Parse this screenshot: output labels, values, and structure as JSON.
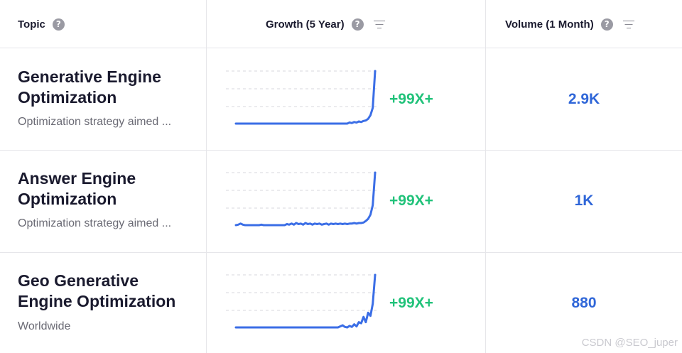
{
  "header": {
    "topic_label": "Topic",
    "growth_label": "Growth (5 Year)",
    "volume_label": "Volume (1 Month)",
    "help_glyph": "?"
  },
  "rows": [
    {
      "title": "Generative Engine Optimization",
      "subtitle": "Optimization strategy aimed ...",
      "growth": "+99X+",
      "volume": "2.9K",
      "trend": [
        0,
        0,
        0,
        0,
        0,
        0,
        0,
        0,
        0,
        0,
        0,
        0,
        0,
        0,
        0,
        0,
        0,
        0,
        0,
        0,
        0,
        0,
        0,
        0,
        0,
        0,
        0,
        0,
        0,
        0,
        0,
        0,
        0,
        0,
        0,
        0,
        0,
        0,
        0,
        0,
        0,
        0,
        0,
        0,
        0,
        0,
        0,
        0,
        0,
        0.02,
        0.01,
        0.03,
        0.02,
        0.04,
        0.03,
        0.05,
        0.06,
        0.09,
        0.16,
        0.3,
        1.0
      ]
    },
    {
      "title": "Answer Engine Optimization",
      "subtitle": "Optimization strategy aimed ...",
      "growth": "+99X+",
      "volume": "1K",
      "trend": [
        0,
        0.01,
        0.03,
        0.01,
        0,
        0,
        0,
        0,
        0,
        0,
        0,
        0.01,
        0,
        0,
        0,
        0,
        0,
        0,
        0,
        0,
        0,
        0,
        0.02,
        0.01,
        0.03,
        0.01,
        0.04,
        0.02,
        0.03,
        0.01,
        0.04,
        0.02,
        0.03,
        0.01,
        0.03,
        0.02,
        0.03,
        0.01,
        0.02,
        0.03,
        0.01,
        0.03,
        0.02,
        0.03,
        0.02,
        0.03,
        0.02,
        0.03,
        0.02,
        0.03,
        0.03,
        0.04,
        0.03,
        0.04,
        0.04,
        0.05,
        0.08,
        0.12,
        0.2,
        0.38,
        1.0
      ]
    },
    {
      "title": "Geo Generative Engine Optimization",
      "subtitle": "Worldwide",
      "growth": "+99X+",
      "volume": "880",
      "trend": [
        0,
        0,
        0,
        0,
        0,
        0,
        0,
        0,
        0,
        0,
        0,
        0,
        0,
        0,
        0,
        0,
        0,
        0,
        0,
        0,
        0,
        0,
        0,
        0,
        0,
        0,
        0,
        0,
        0,
        0,
        0,
        0,
        0,
        0,
        0,
        0,
        0,
        0,
        0,
        0,
        0,
        0,
        0,
        0,
        0,
        0.02,
        0.04,
        0.01,
        0,
        0.03,
        0.01,
        0.06,
        0.02,
        0.1,
        0.08,
        0.2,
        0.1,
        0.28,
        0.22,
        0.45,
        1.0
      ]
    }
  ],
  "watermark": "CSDN @SEO_juper",
  "colors": {
    "line": "#3b6ee6",
    "growth": "#21c27a",
    "volume": "#2f66d8",
    "grid": "#d7d7dc"
  }
}
